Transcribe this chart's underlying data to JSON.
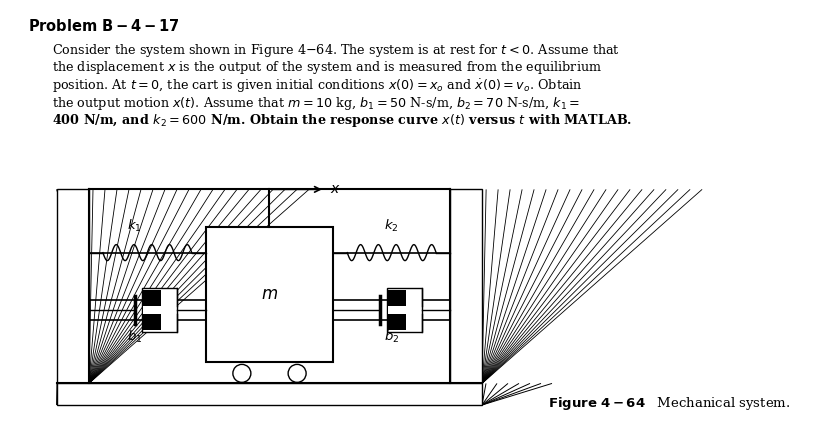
{
  "title": "Problem B–4–17",
  "bg_color": "#ffffff",
  "text_color": "#000000",
  "fig_caption": "Figure 4–64   Mechanical system."
}
